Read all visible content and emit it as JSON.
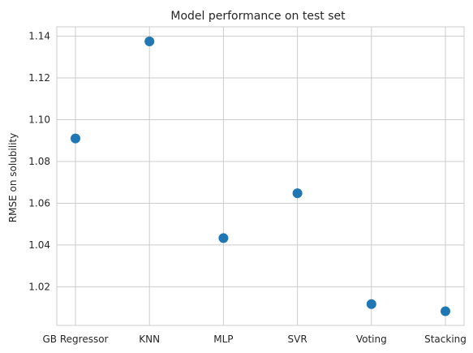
{
  "chart_data": {
    "type": "scatter",
    "title": "Model performance on test set",
    "xlabel": "",
    "ylabel": "RMSE on solubility",
    "categories": [
      "GB Regressor",
      "KNN",
      "MLP",
      "SVR",
      "Voting",
      "Stacking"
    ],
    "values": [
      1.091,
      1.1375,
      1.0433,
      1.0648,
      1.0117,
      1.0083
    ],
    "ylim": [
      1.0015,
      1.1445
    ],
    "yticks": [
      "1.02",
      "1.04",
      "1.06",
      "1.08",
      "1.10",
      "1.12",
      "1.14"
    ],
    "ytick_values": [
      1.02,
      1.04,
      1.06,
      1.08,
      1.1,
      1.12,
      1.14
    ],
    "grid": true,
    "legend": "none",
    "colors": {
      "marker": "#1f77b4",
      "grid": "#cccccc",
      "text": "#262626"
    }
  }
}
